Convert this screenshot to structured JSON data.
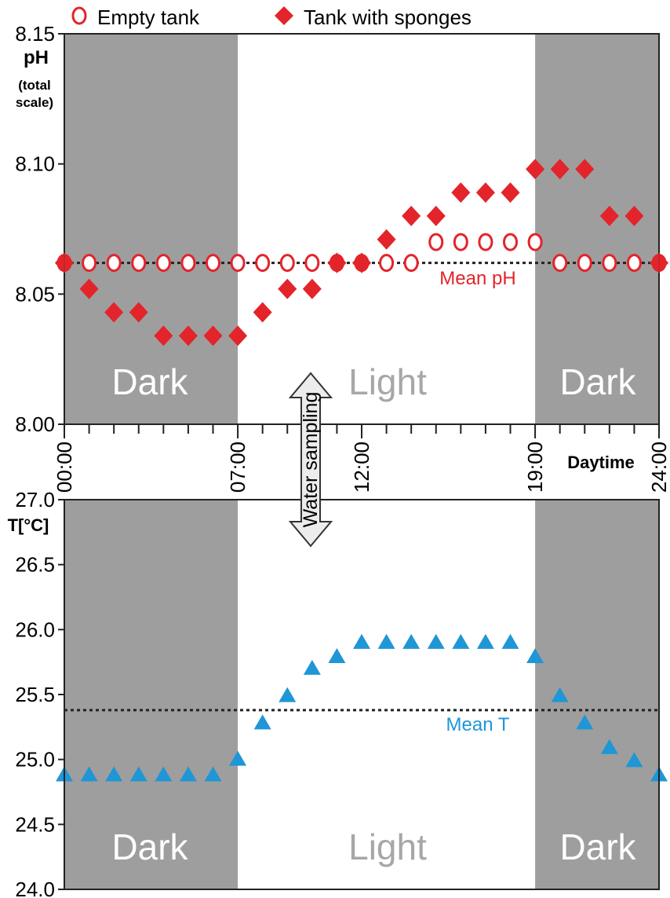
{
  "legend": {
    "empty_label": "Empty tank",
    "sponges_label": "Tank with sponges"
  },
  "colors": {
    "dark_band": "#9e9e9e",
    "ph_marker": "#e3242b",
    "temp_marker": "#1f96d6",
    "light_text": "#a7a7a7"
  },
  "bands": {
    "dark": "Dark",
    "light": "Light"
  },
  "time_axis": {
    "label": "Daytime",
    "tick_labels": [
      "00:00",
      "07:00",
      "12:00",
      "19:00",
      "24:00"
    ],
    "tick_hours": [
      0,
      7,
      12,
      19,
      24
    ],
    "minor_tick_hours": [
      1,
      2,
      3,
      4,
      5,
      6,
      8,
      9,
      10,
      11,
      13,
      14,
      15,
      16,
      17,
      18,
      20,
      21,
      22,
      23
    ]
  },
  "annotations": {
    "water_sampling": "Water sampling",
    "mean_ph": "Mean pH",
    "mean_t": "Mean T"
  },
  "chart_data": [
    {
      "type": "scatter",
      "ylabel": "pH",
      "ylabel_sub": [
        "(total",
        "scale)"
      ],
      "ylim": [
        8.0,
        8.15
      ],
      "yticks": [
        "8.00",
        "8.05",
        "8.10",
        "8.15"
      ],
      "xlim": [
        0,
        24
      ],
      "dark_periods": [
        [
          0,
          7
        ],
        [
          19,
          24
        ]
      ],
      "mean_line": 8.062,
      "series": [
        {
          "name": "Empty tank",
          "marker": "open-circle",
          "x": [
            0,
            1,
            2,
            3,
            4,
            5,
            6,
            7,
            8,
            9,
            10,
            11,
            12,
            13,
            14,
            15,
            16,
            17,
            18,
            19,
            20,
            21,
            22,
            23,
            24
          ],
          "y": [
            8.062,
            8.062,
            8.062,
            8.062,
            8.062,
            8.062,
            8.062,
            8.062,
            8.062,
            8.062,
            8.062,
            8.062,
            8.062,
            8.062,
            8.062,
            8.07,
            8.07,
            8.07,
            8.07,
            8.07,
            8.062,
            8.062,
            8.062,
            8.062,
            8.062
          ]
        },
        {
          "name": "Tank with sponges",
          "marker": "filled-diamond",
          "x": [
            0,
            1,
            2,
            3,
            4,
            5,
            6,
            7,
            8,
            9,
            10,
            11,
            12,
            13,
            14,
            15,
            16,
            17,
            18,
            19,
            20,
            21,
            22,
            23,
            24
          ],
          "y": [
            8.062,
            8.052,
            8.043,
            8.043,
            8.034,
            8.034,
            8.034,
            8.034,
            8.043,
            8.052,
            8.052,
            8.062,
            8.062,
            8.071,
            8.08,
            8.08,
            8.089,
            8.089,
            8.089,
            8.098,
            8.098,
            8.098,
            8.08,
            8.08,
            8.062
          ]
        }
      ]
    },
    {
      "type": "scatter",
      "ylabel": "T[°C]",
      "ylim": [
        24.0,
        27.0
      ],
      "yticks": [
        "24.0",
        "24.5",
        "25.0",
        "25.5",
        "26.0",
        "26.5",
        "27.0"
      ],
      "xlim": [
        0,
        24
      ],
      "dark_periods": [
        [
          0,
          7
        ],
        [
          19,
          24
        ]
      ],
      "mean_line": 25.38,
      "series": [
        {
          "name": "",
          "marker": "filled-triangle",
          "x": [
            0,
            1,
            2,
            3,
            4,
            5,
            6,
            7,
            8,
            9,
            10,
            11,
            12,
            13,
            14,
            15,
            16,
            17,
            18,
            19,
            20,
            21,
            22,
            23,
            24
          ],
          "y": [
            24.88,
            24.88,
            24.88,
            24.88,
            24.88,
            24.88,
            24.88,
            25.0,
            25.28,
            25.49,
            25.7,
            25.79,
            25.9,
            25.9,
            25.9,
            25.9,
            25.9,
            25.9,
            25.9,
            25.79,
            25.49,
            25.28,
            25.09,
            24.99,
            24.88
          ]
        }
      ]
    }
  ]
}
